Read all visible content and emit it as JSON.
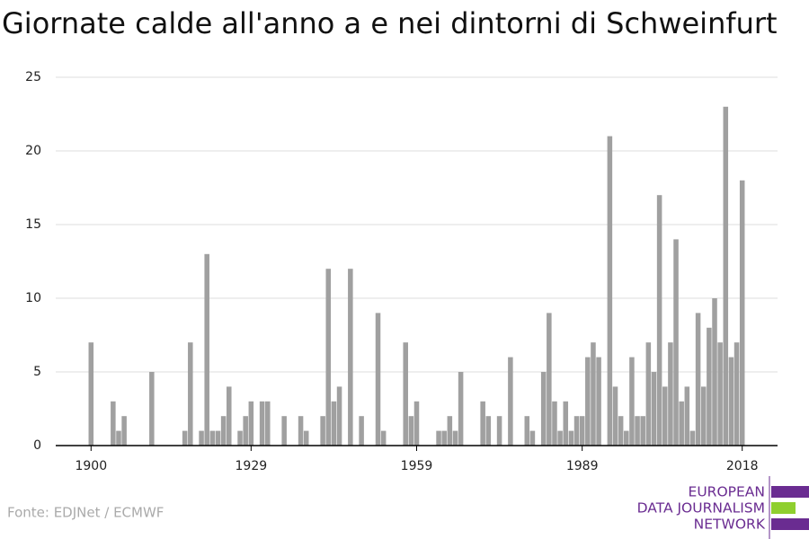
{
  "chart_data": {
    "type": "bar",
    "title": "Giornate calde all'anno a e nei dintorni di Schweinfurt",
    "source": "Fonte: EDJNet / ECMWF",
    "logo": [
      "EUROPEAN",
      "DATA JOURNALISM",
      "NETWORK"
    ],
    "color": "#a0a0a0",
    "x": [
      1900,
      1901,
      1902,
      1903,
      1904,
      1905,
      1906,
      1907,
      1908,
      1909,
      1910,
      1911,
      1912,
      1913,
      1914,
      1915,
      1916,
      1917,
      1918,
      1919,
      1920,
      1921,
      1922,
      1923,
      1924,
      1925,
      1926,
      1927,
      1928,
      1929,
      1930,
      1931,
      1932,
      1933,
      1934,
      1935,
      1936,
      1937,
      1938,
      1939,
      1940,
      1941,
      1942,
      1943,
      1944,
      1945,
      1946,
      1947,
      1948,
      1949,
      1950,
      1951,
      1952,
      1953,
      1954,
      1955,
      1956,
      1957,
      1958,
      1959,
      1960,
      1961,
      1962,
      1963,
      1964,
      1965,
      1966,
      1967,
      1968,
      1969,
      1970,
      1971,
      1972,
      1973,
      1974,
      1975,
      1976,
      1977,
      1978,
      1979,
      1980,
      1981,
      1982,
      1983,
      1984,
      1985,
      1986,
      1987,
      1988,
      1989,
      1990,
      1991,
      1992,
      1993,
      1994,
      1995,
      1996,
      1997,
      1998,
      1999,
      2000,
      2001,
      2002,
      2003,
      2004,
      2005,
      2006,
      2007,
      2008,
      2009,
      2010,
      2011,
      2012,
      2013,
      2014,
      2015,
      2016,
      2017,
      2018
    ],
    "values": [
      7,
      0,
      0,
      0,
      3,
      1,
      2,
      0,
      0,
      0,
      0,
      5,
      0,
      0,
      0,
      0,
      0,
      1,
      7,
      0,
      1,
      13,
      1,
      1,
      2,
      4,
      0,
      1,
      2,
      3,
      0,
      3,
      3,
      0,
      0,
      2,
      0,
      0,
      2,
      1,
      0,
      0,
      2,
      12,
      3,
      4,
      0,
      12,
      0,
      2,
      0,
      0,
      9,
      1,
      0,
      0,
      0,
      7,
      2,
      3,
      0,
      0,
      0,
      1,
      1,
      2,
      1,
      5,
      0,
      0,
      0,
      3,
      2,
      0,
      2,
      0,
      6,
      0,
      0,
      2,
      1,
      0,
      5,
      9,
      3,
      1,
      3,
      1,
      2,
      2,
      6,
      7,
      6,
      0,
      21,
      4,
      2,
      1,
      6,
      2,
      2,
      7,
      5,
      17,
      4,
      7,
      14,
      3,
      4,
      1,
      9,
      4,
      8,
      10,
      7,
      23,
      6,
      7,
      18
    ],
    "xlim": [
      1893.6,
      2024.4
    ],
    "xticks": [
      1900,
      1929,
      1959,
      1989,
      2018
    ],
    "ylim": [
      0,
      25
    ],
    "yticks": [
      0,
      5,
      10,
      15,
      20,
      25
    ],
    "grid": true
  }
}
